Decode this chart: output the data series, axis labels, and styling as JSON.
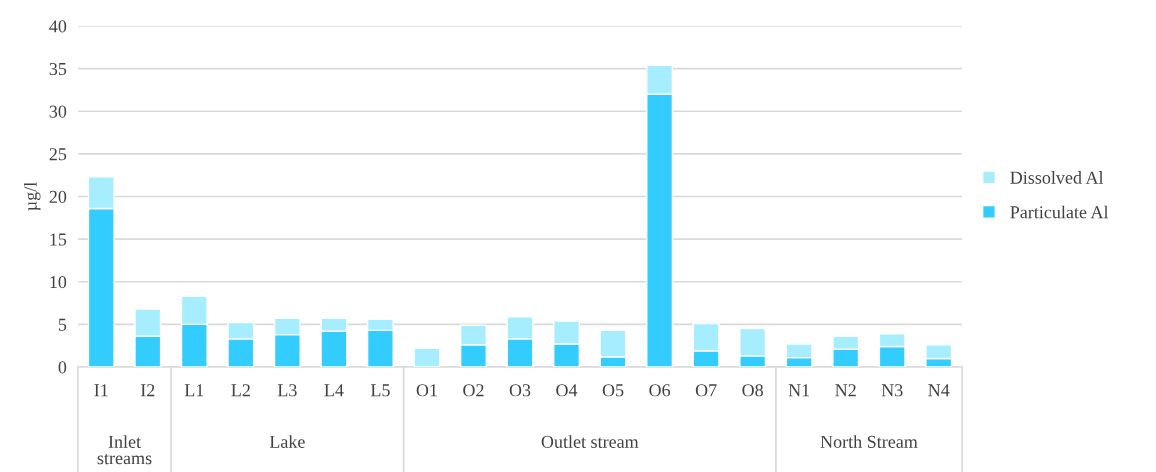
{
  "chart_data": {
    "type": "bar",
    "stacked": true,
    "ylabel": "µg/l",
    "categories": [
      "I1",
      "I2",
      "L1",
      "L2",
      "L3",
      "L4",
      "L5",
      "O1",
      "O2",
      "O3",
      "O4",
      "O5",
      "O6",
      "O7",
      "O8",
      "N1",
      "N2",
      "N3",
      "N4"
    ],
    "series": [
      {
        "name": "Particulate Al",
        "color": "#33ccff",
        "values": [
          18.6,
          3.6,
          5.0,
          3.3,
          3.8,
          4.2,
          4.3,
          0,
          2.6,
          3.3,
          2.7,
          1.2,
          32.0,
          1.9,
          1.3,
          1.1,
          2.1,
          2.4,
          1.0
        ]
      },
      {
        "name": "Dissolved Al",
        "color": "#a6eeff",
        "values": [
          3.7,
          3.2,
          3.3,
          1.9,
          1.9,
          1.5,
          1.3,
          2.2,
          2.3,
          2.6,
          2.7,
          3.1,
          3.4,
          3.2,
          3.2,
          1.6,
          1.5,
          1.5,
          1.6
        ]
      }
    ],
    "annotations": [
      "Inlet\nstreams",
      "Lake",
      "Outlet stream",
      "North Stream"
    ],
    "ylim": [
      0,
      40
    ],
    "yticks": [
      0,
      5,
      10,
      15,
      20,
      25,
      30,
      35,
      40
    ],
    "grid": "y",
    "legend": "right"
  }
}
